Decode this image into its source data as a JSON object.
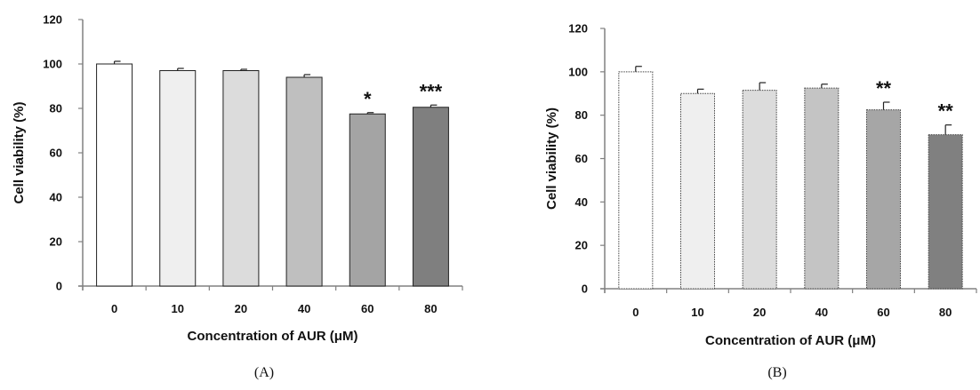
{
  "chart_data": [
    {
      "type": "bar",
      "panel_label": "(A)",
      "categories": [
        "0",
        "10",
        "20",
        "40",
        "60",
        "80"
      ],
      "values": [
        100,
        97,
        97,
        94,
        77.5,
        80.5
      ],
      "errors": [
        1.2,
        1.0,
        0.6,
        1.2,
        0.6,
        1.0
      ],
      "significance": [
        "",
        "",
        "",
        "",
        "*",
        "***"
      ],
      "bar_colors": [
        "#ffffff",
        "#efefef",
        "#dcdcdc",
        "#bfbfbf",
        "#a4a4a4",
        "#7f7f7f"
      ],
      "xlabel": "Concentration of AUR (μM)",
      "ylabel": "Cell viability (%)",
      "ylim": [
        0,
        120
      ],
      "yticks": [
        "0",
        "20",
        "40",
        "60",
        "80",
        "100",
        "120"
      ]
    },
    {
      "type": "bar",
      "panel_label": "(B)",
      "categories": [
        "0",
        "10",
        "20",
        "40",
        "60",
        "80"
      ],
      "values": [
        100,
        90,
        91.5,
        92.5,
        82.5,
        71
      ],
      "errors": [
        2.5,
        2.0,
        3.5,
        1.8,
        3.5,
        4.5
      ],
      "significance": [
        "",
        "",
        "",
        "",
        "**",
        "**"
      ],
      "bar_colors": [
        "#ffffff",
        "#efefef",
        "#dcdcdc",
        "#c4c4c4",
        "#a6a6a6",
        "#808080"
      ],
      "xlabel": "Concentration of AUR (μM)",
      "ylabel": "Cell viability (%)",
      "ylim": [
        0,
        120
      ],
      "yticks": [
        "0",
        "20",
        "40",
        "60",
        "80",
        "100",
        "120"
      ]
    }
  ]
}
